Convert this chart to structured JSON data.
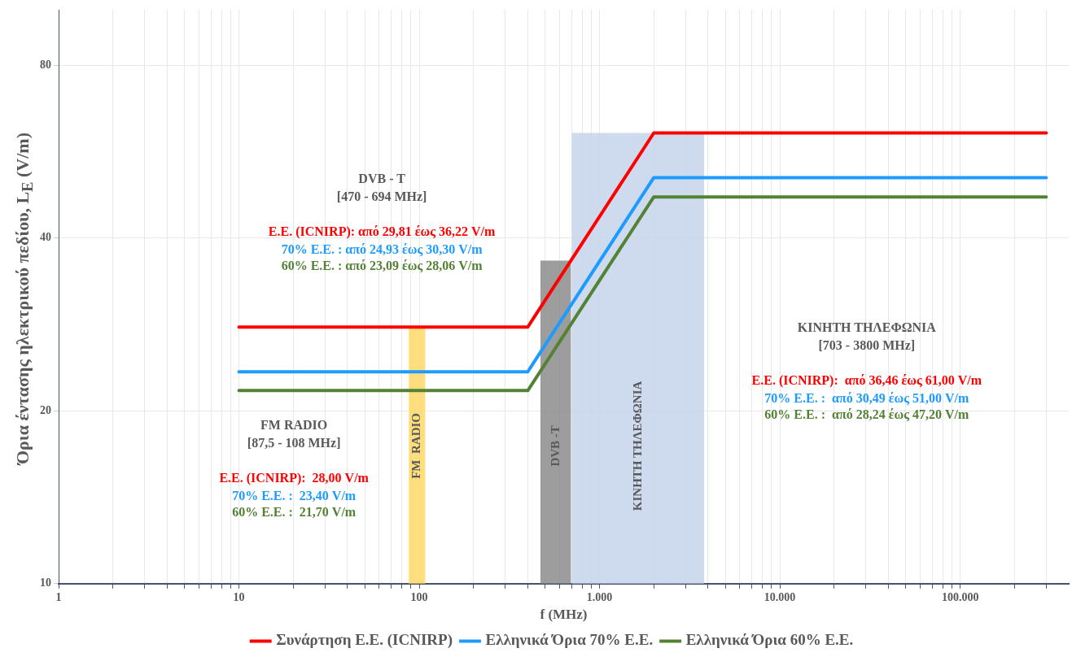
{
  "chart_data": {
    "type": "line",
    "xlabel": "f (MHz)",
    "ylabel": "Όρια έντασης ηλεκτρικού πεδίου, L$_{E}$ (V/m)",
    "log": "xy",
    "grid": true,
    "legend": "bottom",
    "marker": "none",
    "line_style": "solid",
    "xlim": [
      1,
      400000
    ],
    "ylim": [
      10,
      100
    ],
    "xticks": [
      1,
      {
        "value": 2,
        "label": null
      },
      {
        "value": 3,
        "label": null
      },
      {
        "value": 4,
        "label": null
      },
      {
        "value": 5,
        "label": null
      },
      {
        "value": 6,
        "label": null
      },
      {
        "value": 7,
        "label": null
      },
      {
        "value": 8,
        "label": null
      },
      {
        "value": 9,
        "label": null
      },
      10,
      {
        "value": 20,
        "label": null
      },
      {
        "value": 30,
        "label": null
      },
      {
        "value": 40,
        "label": null
      },
      {
        "value": 50,
        "label": null
      },
      {
        "value": 60,
        "label": null
      },
      {
        "value": 70,
        "label": null
      },
      {
        "value": 80,
        "label": null
      },
      {
        "value": 90,
        "label": null
      },
      100,
      {
        "value": 200,
        "label": null
      },
      {
        "value": 300,
        "label": null
      },
      {
        "value": 400,
        "label": null
      },
      {
        "value": 500,
        "label": null
      },
      {
        "value": 600,
        "label": null
      },
      {
        "value": 700,
        "label": null
      },
      {
        "value": 800,
        "label": null
      },
      {
        "value": 900,
        "label": null
      },
      {
        "value": 1000,
        "label": "1.000"
      },
      {
        "value": 2000,
        "label": null
      },
      {
        "value": 3000,
        "label": null
      },
      {
        "value": 4000,
        "label": null
      },
      {
        "value": 5000,
        "label": null
      },
      {
        "value": 6000,
        "label": null
      },
      {
        "value": 7000,
        "label": null
      },
      {
        "value": 8000,
        "label": null
      },
      {
        "value": 9000,
        "label": null
      },
      {
        "value": 10000,
        "label": "10.000"
      },
      {
        "value": 20000,
        "label": null
      },
      {
        "value": 30000,
        "label": null
      },
      {
        "value": 40000,
        "label": null
      },
      {
        "value": 50000,
        "label": null
      },
      {
        "value": 60000,
        "label": null
      },
      {
        "value": 70000,
        "label": null
      },
      {
        "value": 80000,
        "label": null
      },
      {
        "value": 90000,
        "label": null
      },
      {
        "value": 100000,
        "label": "100.000"
      },
      {
        "value": 200000,
        "label": null
      },
      {
        "value": 300000,
        "label": null
      }
    ],
    "yticks": [
      10,
      20,
      40,
      80
    ],
    "series": [
      {
        "name": "Συνάρτηση Ε.Ε. (ICNIRP)",
        "color": "#ff0000",
        "x": [
          10,
          400,
          2000,
          300000
        ],
        "values": [
          28,
          28,
          61,
          61
        ]
      },
      {
        "name": "Ελληνικά Όρια 70% Ε.Ε.",
        "color": "#1e9bff",
        "x": [
          10,
          400,
          2000,
          300000
        ],
        "values": [
          23.4,
          23.4,
          51,
          51
        ]
      },
      {
        "name": "Ελληνικά Όρια 60% Ε.Ε.",
        "color": "#548235",
        "x": [
          10,
          400,
          2000,
          300000
        ],
        "values": [
          21.7,
          21.7,
          47.2,
          47.2
        ]
      }
    ],
    "bands": [
      {
        "axis": "x",
        "from": 87.5,
        "to": 108,
        "label": "FM  RADIO",
        "color": "#ffd966"
      },
      {
        "axis": "x",
        "from": 470,
        "to": 694,
        "label": "DVB -T",
        "color": "#8c8c8c"
      },
      {
        "axis": "x",
        "from": 703,
        "to": 3800,
        "label": "ΚΙΝΗΤΗ ΤΗΛΕΦΩΝΙΑ",
        "color": "#c5d3ea"
      }
    ],
    "annotations": [
      "FM RADIO",
      "[87,5 - 108 MHz]",
      "Ε.Ε. (ICNIRP):  28,00 V/m",
      "70% Ε.Ε. :  23,40 V/m",
      "60% Ε.Ε. :  21,70 V/m",
      "DVB - T",
      "[470 - 694 MHz]",
      "Ε.Ε. (ICNIRP): από 29,81 έως 36,22 V/m",
      "70% Ε.Ε. : από 24,93 έως 30,30 V/m",
      "60% Ε.Ε. : από 23,09 έως 28,06 V/m",
      "ΚΙΝΗΤΗ ΤΗΛΕΦΩΝΙΑ",
      "[703 - 3800 MHz]",
      "Ε.Ε. (ICNIRP):  από 36,46 έως 61,00 V/m",
      "70% Ε.Ε. :  από 30,49 έως 51,00 V/m",
      "60% Ε.Ε. :  από 28,24 έως 47,20 V/m"
    ]
  }
}
